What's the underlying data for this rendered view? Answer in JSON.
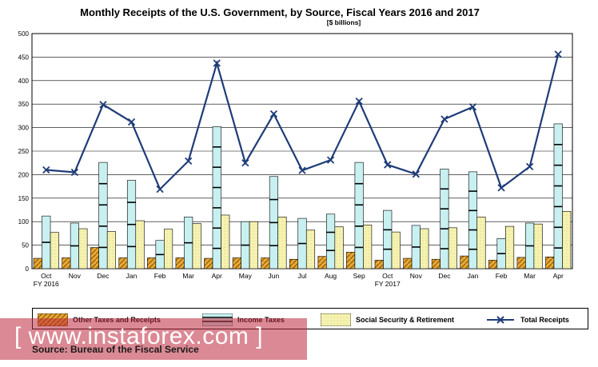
{
  "chart_data": {
    "type": "bar",
    "title": "Monthly Receipts of the U.S. Government, by Source,  Fiscal Years 2016 and 2017",
    "subtitle": "[$ billions]",
    "ylim": [
      0,
      500
    ],
    "yticks": [
      "0",
      "50",
      "100",
      "150",
      "200",
      "250",
      "300",
      "350",
      "400",
      "450",
      "500"
    ],
    "yticks_display": [
      "0",
      "50",
      "100",
      "150",
      "200",
      "250",
      "300",
      "350",
      "400",
      "450",
      "500"
    ],
    "categories": [
      "Oct",
      "Nov",
      "Dec",
      "Jan",
      "Feb",
      "Mar",
      "Apr",
      "May",
      "Jun",
      "Jul",
      "Aug",
      "Sep",
      "Oct",
      "Nov",
      "Dec",
      "Jan",
      "Feb",
      "Mar",
      "Apr"
    ],
    "fiscal_year_labels": [
      {
        "label": "FY 2016",
        "index": 0
      },
      {
        "label": "FY 2017",
        "index": 12
      }
    ],
    "series": [
      {
        "name": "Other Taxes and Receipts",
        "kind": "bar",
        "values": [
          22,
          23,
          45,
          23,
          23,
          23,
          22,
          23,
          23,
          20,
          26,
          35,
          18,
          22,
          20,
          27,
          18,
          24,
          25
        ]
      },
      {
        "name": "Income Taxes",
        "kind": "bar",
        "values": [
          112,
          97,
          226,
          188,
          60,
          110,
          302,
          100,
          196,
          107,
          116,
          226,
          124,
          92,
          212,
          206,
          64,
          97,
          308
        ]
      },
      {
        "name": "Social Security & Retirement",
        "kind": "bar",
        "values": [
          77,
          85,
          79,
          102,
          84,
          96,
          114,
          100,
          110,
          82,
          89,
          93,
          78,
          85,
          87,
          110,
          90,
          95,
          122
        ]
      },
      {
        "name": "Total Receipts",
        "kind": "line",
        "values": [
          210,
          205,
          349,
          312,
          169,
          229,
          437,
          225,
          329,
          209,
          231,
          356,
          221,
          201,
          318,
          344,
          172,
          217,
          456
        ]
      }
    ]
  },
  "legend": {
    "other": "Other Taxes and Receipts",
    "income": "Income Taxes",
    "social": "Social Security & Retirement",
    "total": "Total Receipts"
  },
  "source": "Source: Bureau of the Fiscal Service",
  "watermark": "[ www.instaforex.com ]",
  "colors": {
    "other": "#e0a030",
    "income": "#c8f0f0",
    "social": "#f4f0a8",
    "line": "#1f3c78",
    "grid": "#000000"
  }
}
